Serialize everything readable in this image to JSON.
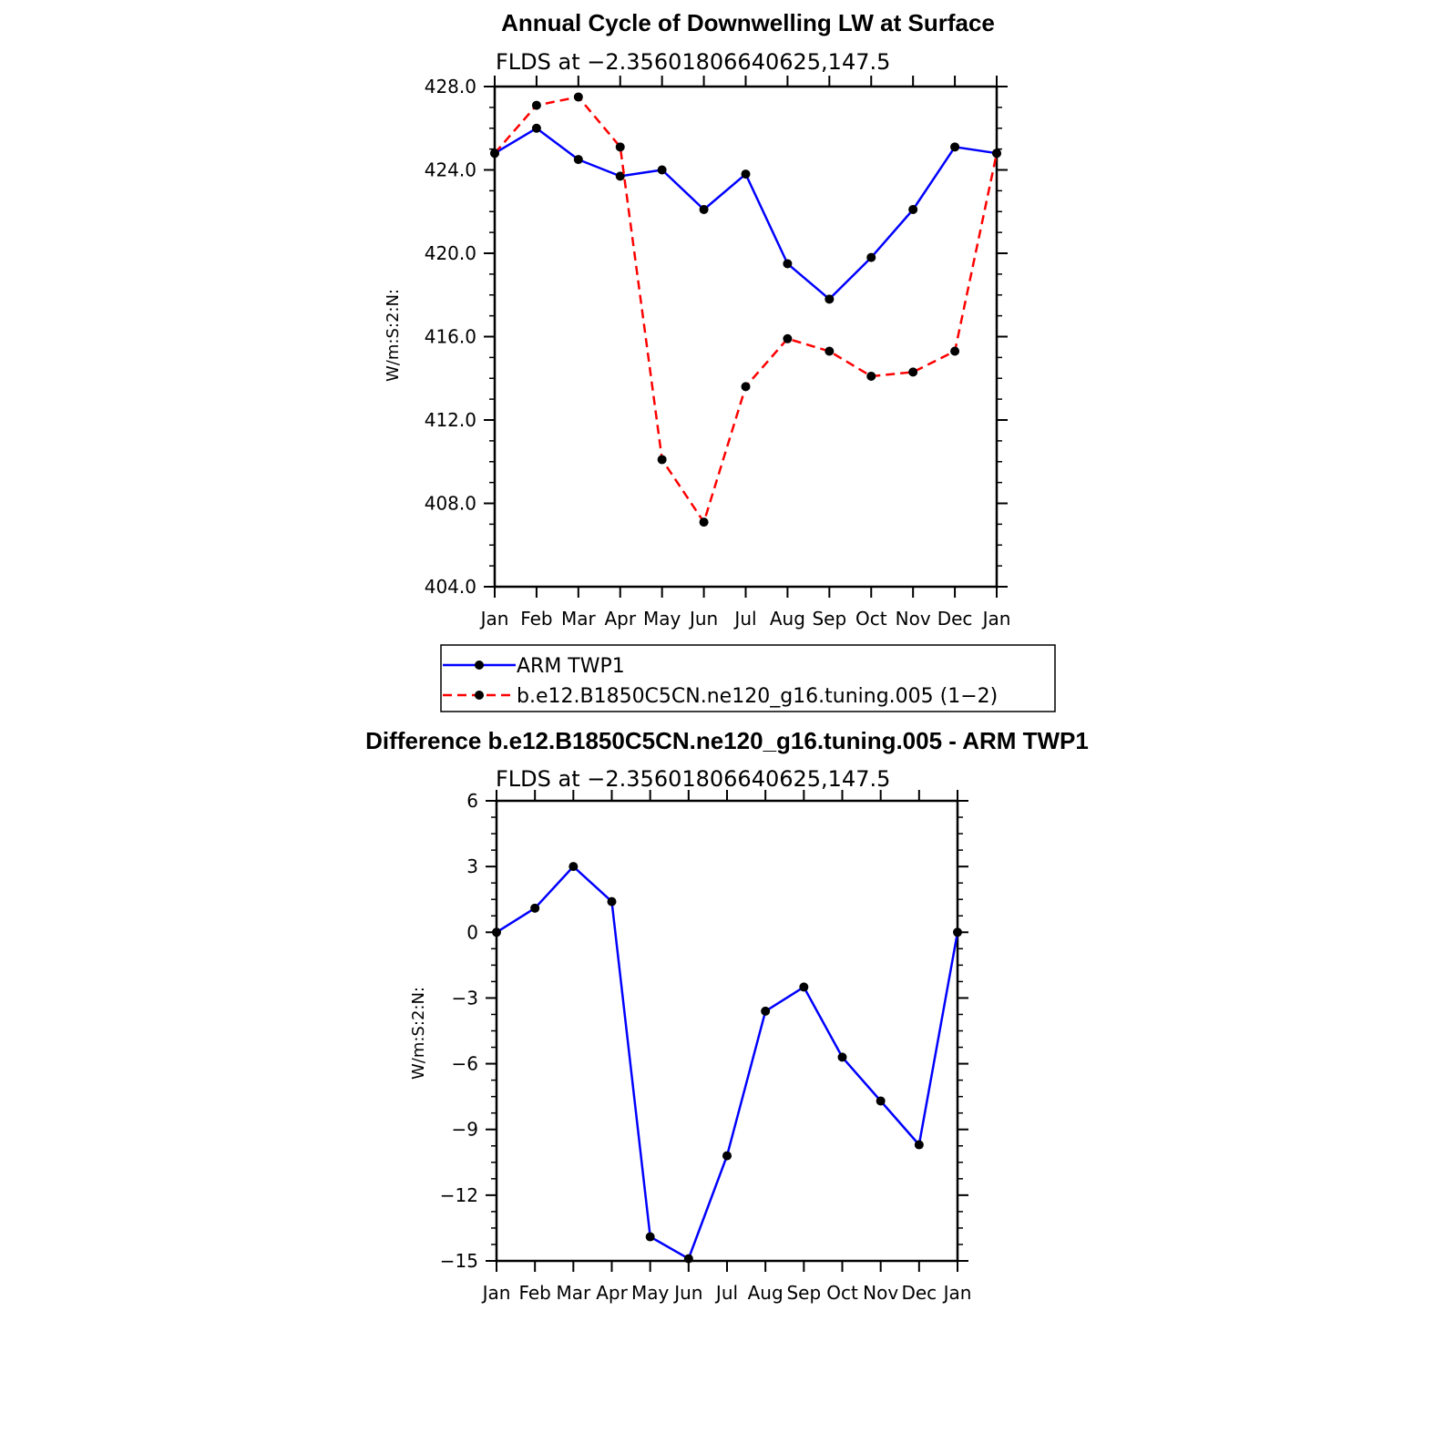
{
  "colors": {
    "model": "#0000ff",
    "reference": "#ff0000",
    "markers": "#000000",
    "axes": "#000000"
  },
  "chart_data": [
    {
      "type": "line",
      "title": "Annual Cycle of Downwelling LW at Surface",
      "subtitle": "FLDS at −2.35601806640625,147.5",
      "xlabel": "",
      "ylabel": "W/m:S:2:N:",
      "categories": [
        "Jan",
        "Feb",
        "Mar",
        "Apr",
        "May",
        "Jun",
        "Jul",
        "Aug",
        "Sep",
        "Oct",
        "Nov",
        "Dec",
        "Jan"
      ],
      "ylim": [
        404,
        428
      ],
      "yticks": [
        404,
        408,
        412,
        416,
        420,
        424,
        428
      ],
      "ytick_labels": [
        "404.0",
        "408.0",
        "412.0",
        "416.0",
        "420.0",
        "424.0",
        "428.0"
      ],
      "series": [
        {
          "name": "ARM  TWP1",
          "style": "solid",
          "color": "#0000ff",
          "values": [
            424.8,
            426.0,
            424.5,
            423.7,
            424.0,
            422.1,
            423.8,
            419.5,
            417.8,
            419.8,
            422.1,
            425.1,
            424.8
          ]
        },
        {
          "name": "b.e12.B1850C5CN.ne120_g16.tuning.005 (1−2)",
          "style": "dashed",
          "color": "#ff0000",
          "values": [
            424.8,
            427.1,
            427.5,
            425.1,
            410.1,
            407.1,
            413.6,
            415.9,
            415.3,
            414.1,
            414.3,
            415.3,
            424.8
          ]
        }
      ],
      "legend": "below"
    },
    {
      "type": "line",
      "title": "Difference b.e12.B1850C5CN.ne120_g16.tuning.005 - ARM TWP1",
      "subtitle": "FLDS at −2.35601806640625,147.5",
      "xlabel": "",
      "ylabel": "W/m:S:2:N:",
      "categories": [
        "Jan",
        "Feb",
        "Mar",
        "Apr",
        "May",
        "Jun",
        "Jul",
        "Aug",
        "Sep",
        "Oct",
        "Nov",
        "Dec",
        "Jan"
      ],
      "ylim": [
        -15,
        6
      ],
      "yticks": [
        -15,
        -12,
        -9,
        -6,
        -3,
        0,
        3,
        6
      ],
      "ytick_labels": [
        "−15",
        "−12",
        "−9",
        "−6",
        "−3",
        "0",
        "3",
        "6"
      ],
      "series": [
        {
          "name": "Difference",
          "style": "solid",
          "color": "#0000ff",
          "values": [
            0.0,
            1.1,
            3.0,
            1.4,
            -13.9,
            -14.9,
            -10.2,
            -3.6,
            -2.5,
            -5.7,
            -7.7,
            -9.7,
            0.0
          ]
        }
      ]
    }
  ]
}
